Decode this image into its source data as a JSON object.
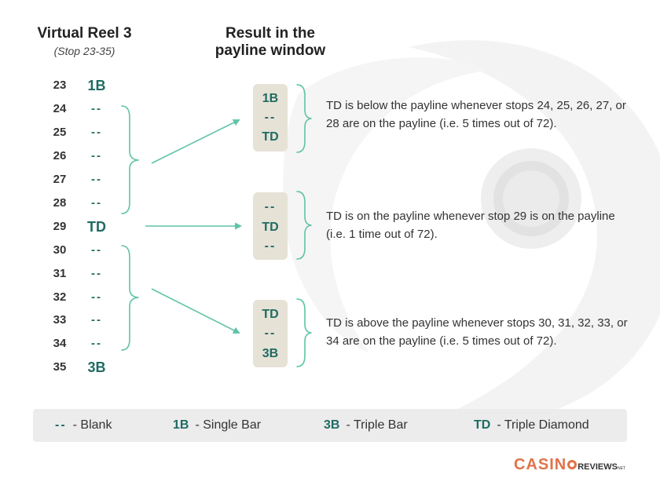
{
  "reel": {
    "title": "Virtual Reel 3",
    "subtitle": "(Stop 23-35)",
    "stops": [
      {
        "num": "23",
        "symbol": "1B"
      },
      {
        "num": "24",
        "symbol": "--"
      },
      {
        "num": "25",
        "symbol": "--"
      },
      {
        "num": "26",
        "symbol": "--"
      },
      {
        "num": "27",
        "symbol": "--"
      },
      {
        "num": "28",
        "symbol": "--"
      },
      {
        "num": "29",
        "symbol": "TD"
      },
      {
        "num": "30",
        "symbol": "--"
      },
      {
        "num": "31",
        "symbol": "--"
      },
      {
        "num": "32",
        "symbol": "--"
      },
      {
        "num": "33",
        "symbol": "--"
      },
      {
        "num": "34",
        "symbol": "--"
      },
      {
        "num": "35",
        "symbol": "3B"
      }
    ]
  },
  "window": {
    "title_line1": "Result in the",
    "title_line2": "payline window",
    "results": [
      {
        "cells": [
          "1B",
          "--",
          "TD"
        ],
        "description": "TD is below the payline whenever stops 24, 25, 26, 27, or 28 are on the payline (i.e. 5 times out of 72)."
      },
      {
        "cells": [
          "--",
          "TD",
          "--"
        ],
        "description": "TD is on the payline whenever stop 29 is on the payline (i.e. 1 time out of 72)."
      },
      {
        "cells": [
          "TD",
          "--",
          "3B"
        ],
        "description": "TD is above the payline whenever stops 30, 31, 32, 33, or 34 are on the payline (i.e. 5 times out of 72)."
      }
    ]
  },
  "legend": [
    {
      "symbol": "--",
      "label": "- Blank"
    },
    {
      "symbol": "1B",
      "label": "- Single Bar"
    },
    {
      "symbol": "3B",
      "label": "- Triple Bar"
    },
    {
      "symbol": "TD",
      "label": "- Triple Diamond"
    }
  ],
  "logo": {
    "casino": "CASIN",
    "reviews": "REVIEWS",
    "net": "NET"
  },
  "colors": {
    "accent": "#1f6b63",
    "arrow": "#5fc3a8",
    "box": "#e6e2d6",
    "legend_bg": "#ececec",
    "logo": "#e0734a"
  }
}
